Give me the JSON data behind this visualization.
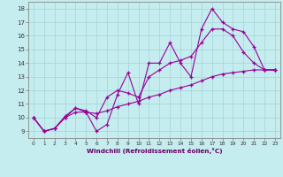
{
  "bg_color": "#c5ecee",
  "line_color": "#990099",
  "grid_color": "#a8d8da",
  "xlabel": "Windchill (Refroidissement éolien,°C)",
  "xlim_min": -0.5,
  "xlim_max": 23.5,
  "ylim_min": 8.5,
  "ylim_max": 18.5,
  "xticks": [
    0,
    1,
    2,
    3,
    4,
    5,
    6,
    7,
    8,
    9,
    10,
    11,
    12,
    13,
    14,
    15,
    16,
    17,
    18,
    19,
    20,
    21,
    22,
    23
  ],
  "yticks": [
    9,
    10,
    11,
    12,
    13,
    14,
    15,
    16,
    17,
    18
  ],
  "s1_x": [
    0,
    1,
    2,
    3,
    4,
    5,
    6,
    7,
    8,
    9,
    10,
    11,
    12,
    13,
    14,
    15,
    16,
    17,
    18,
    19,
    20,
    21,
    22,
    23
  ],
  "s1_y": [
    10.0,
    9.0,
    9.2,
    10.0,
    10.7,
    10.4,
    9.0,
    9.5,
    11.7,
    13.3,
    11.0,
    14.0,
    14.0,
    15.5,
    14.0,
    13.0,
    16.5,
    18.0,
    17.0,
    16.5,
    16.3,
    15.2,
    13.5,
    13.5
  ],
  "s2_x": [
    0,
    1,
    2,
    3,
    4,
    5,
    6,
    7,
    8,
    9,
    10,
    11,
    12,
    13,
    14,
    15,
    16,
    17,
    18,
    19,
    20,
    21,
    22,
    23
  ],
  "s2_y": [
    10.0,
    9.0,
    9.2,
    10.1,
    10.7,
    10.5,
    10.0,
    11.5,
    12.0,
    11.8,
    11.5,
    13.0,
    13.5,
    14.0,
    14.2,
    14.5,
    15.5,
    16.5,
    16.5,
    16.0,
    14.8,
    14.0,
    13.5,
    13.5
  ],
  "s3_x": [
    0,
    1,
    2,
    3,
    4,
    5,
    6,
    7,
    8,
    9,
    10,
    11,
    12,
    13,
    14,
    15,
    16,
    17,
    18,
    19,
    20,
    21,
    22,
    23
  ],
  "s3_y": [
    10.0,
    9.0,
    9.2,
    10.0,
    10.4,
    10.4,
    10.3,
    10.5,
    10.8,
    11.0,
    11.2,
    11.5,
    11.7,
    12.0,
    12.2,
    12.4,
    12.7,
    13.0,
    13.2,
    13.3,
    13.4,
    13.5,
    13.5,
    13.5
  ]
}
